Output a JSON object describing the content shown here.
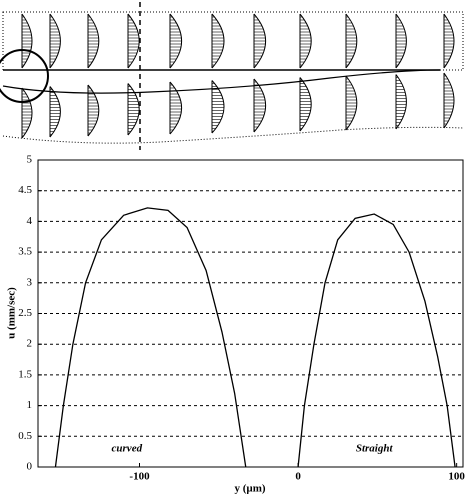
{
  "chart_data": {
    "type": "line",
    "xlabel": "y (µm)",
    "ylabel": "u (mm/sec)",
    "annotations": [
      "curved",
      "Straight"
    ],
    "xlim": [
      -164,
      104
    ],
    "ylim": [
      0,
      5
    ],
    "xticks": [
      -100,
      0,
      100
    ],
    "yticks": [
      0,
      0.5,
      1,
      1.5,
      2,
      2.5,
      3,
      3.5,
      4,
      4.5,
      5
    ],
    "grid": true,
    "series": [
      {
        "color": "#000000",
        "x": [
          -153,
          -148,
          -142,
          -134,
          -124,
          -110,
          -95,
          -82,
          -70,
          -58,
          -48,
          -40,
          -33
        ],
        "values": [
          0,
          1,
          2,
          3,
          3.7,
          4.1,
          4.22,
          4.18,
          3.9,
          3.2,
          2.2,
          1.2,
          0
        ]
      },
      {
        "color": "#000000",
        "x": [
          0,
          4,
          10,
          17,
          25,
          36,
          48,
          60,
          70,
          80,
          88,
          94,
          99
        ],
        "values": [
          0,
          1,
          2,
          3,
          3.7,
          4.05,
          4.12,
          3.95,
          3.5,
          2.7,
          1.8,
          1,
          0
        ]
      }
    ]
  }
}
